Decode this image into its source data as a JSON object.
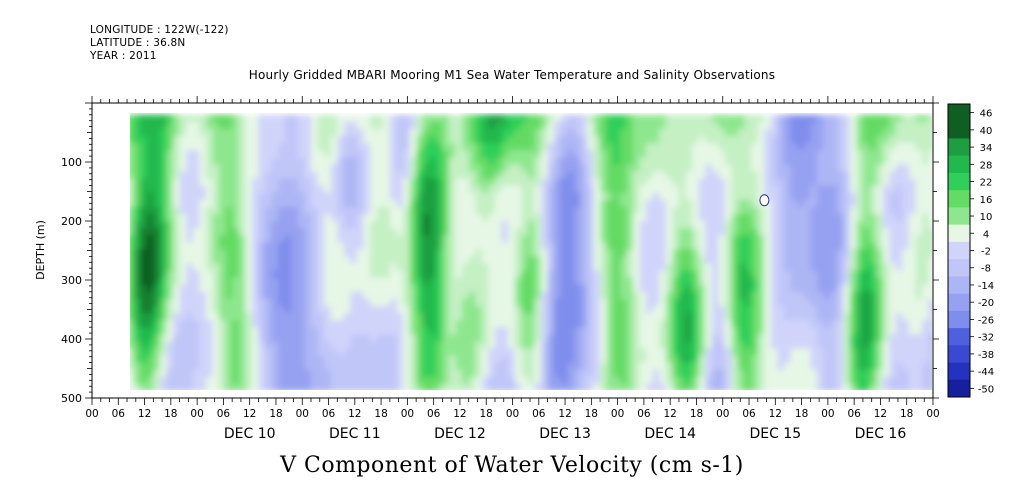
{
  "header": {
    "longitude": "LONGITUDE : 122W(-122)",
    "latitude": "LATITUDE : 36.8N",
    "year": "YEAR : 2011"
  },
  "chart_data": {
    "type": "heatmap",
    "title": "Hourly Gridded MBARI Mooring M1 Sea Water Temperature and Salinity Observations",
    "xlabel": "V Component of Water Velocity (cm s-1)",
    "ylabel": "DEPTH (m)",
    "y_ticks": [
      100,
      200,
      300,
      400,
      500
    ],
    "y_range": [
      500,
      0
    ],
    "x_day_labels": [
      "DEC 10",
      "DEC 11",
      "DEC 12",
      "DEC 13",
      "DEC 14",
      "DEC 15",
      "DEC 16"
    ],
    "x_hour_labels": [
      "00",
      "06",
      "12",
      "18",
      "00",
      "06",
      "12",
      "18",
      "00",
      "06",
      "12",
      "18",
      "00",
      "06",
      "12",
      "18",
      "00",
      "06",
      "12",
      "18",
      "00",
      "06",
      "12",
      "18",
      "00",
      "06",
      "12",
      "18",
      "00",
      "06",
      "12",
      "18",
      "00"
    ],
    "data_extent": {
      "time_start": "DEC 09 08h",
      "time_end": "DEC 16 23h",
      "depth_top": 20,
      "depth_bottom": 485
    },
    "colorbar_labels": [
      "46",
      "40",
      "34",
      "28",
      "22",
      "16",
      "10",
      "4",
      "-2",
      "-8",
      "-14",
      "-20",
      "-26",
      "-32",
      "-38",
      "-44",
      "-50"
    ],
    "colorbar_min": -50,
    "colorbar_max": 50,
    "colors": {
      "positive": [
        "#e6f7e6",
        "#c4f0c4",
        "#8ee78e",
        "#64db64",
        "#2fcf5a",
        "#21b84e",
        "#1e9e40",
        "#157d2e",
        "#0f5f22"
      ],
      "negative": [
        "#d0d4fa",
        "#c0c6f8",
        "#adb6f5",
        "#96a2f1",
        "#7f8dec",
        "#6778e6",
        "#4f60de",
        "#3a49d2",
        "#2532c0",
        "#16209f",
        "#0c137b",
        "#060a55"
      ]
    }
  }
}
